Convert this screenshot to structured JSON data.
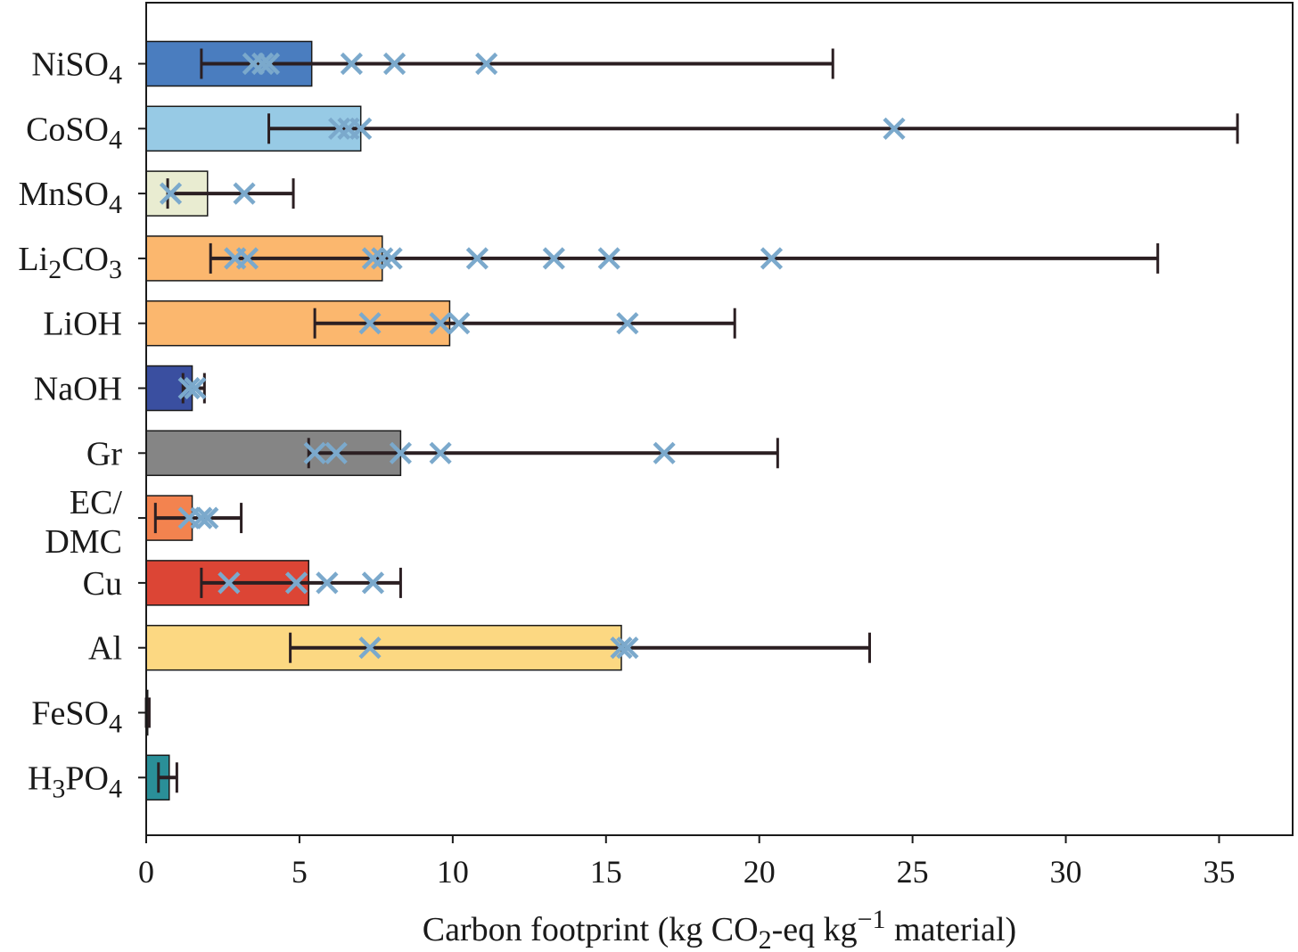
{
  "chart_data": {
    "type": "bar",
    "orientation": "horizontal",
    "xlabel": "Carbon footprint (kg CO₂-eq kg⁻¹ material)",
    "xlabel_parts": [
      "Carbon footprint (kg CO",
      "2",
      "-eq kg",
      "−1",
      " material)"
    ],
    "xlim": [
      0,
      37.4
    ],
    "xticks": [
      0,
      5,
      10,
      15,
      20,
      25,
      30,
      35
    ],
    "xtick_labels": [
      "0",
      "5",
      "10",
      "15",
      "20",
      "25",
      "30",
      "35"
    ],
    "grid": false,
    "legend": "none",
    "marker_color": "#7ba9cc",
    "errorbar_color": "#2b1f22",
    "categories": [
      {
        "label": "NiSO4",
        "parts": [
          [
            "NiSO",
            false
          ],
          [
            "4",
            true
          ]
        ],
        "value": 5.4,
        "err_low": 1.8,
        "err_high": 22.4,
        "points": [
          3.5,
          3.8,
          4.0,
          6.7,
          8.1,
          11.1
        ],
        "color": "#4a7dbf"
      },
      {
        "label": "CoSO4",
        "parts": [
          [
            "CoSO",
            false
          ],
          [
            "4",
            true
          ]
        ],
        "value": 7.0,
        "err_low": 4.0,
        "err_high": 35.6,
        "points": [
          6.3,
          6.6,
          7.0,
          24.4
        ],
        "color": "#97cae5"
      },
      {
        "label": "MnSO4",
        "parts": [
          [
            "MnSO",
            false
          ],
          [
            "4",
            true
          ]
        ],
        "value": 2.0,
        "err_low": 0.7,
        "err_high": 4.8,
        "points": [
          0.8,
          3.2
        ],
        "color": "#e9ecd1"
      },
      {
        "label": "Li2CO3",
        "parts": [
          [
            "Li",
            false
          ],
          [
            "2",
            true
          ],
          [
            "CO",
            false
          ],
          [
            "3",
            true
          ]
        ],
        "value": 7.7,
        "err_low": 2.1,
        "err_high": 33.0,
        "points": [
          2.9,
          3.3,
          7.4,
          7.7,
          8.0,
          10.8,
          13.3,
          15.1,
          20.4
        ],
        "color": "#fbb76e"
      },
      {
        "label": "LiOH",
        "parts": [
          [
            "LiOH",
            false
          ]
        ],
        "value": 9.9,
        "err_low": 5.5,
        "err_high": 19.2,
        "points": [
          7.3,
          9.6,
          10.2,
          15.7
        ],
        "color": "#fbb76e"
      },
      {
        "label": "NaOH",
        "parts": [
          [
            "NaOH",
            false
          ]
        ],
        "value": 1.5,
        "err_low": 1.2,
        "err_high": 1.9,
        "points": [
          1.4,
          1.6
        ],
        "color": "#3a4fa0"
      },
      {
        "label": "Gr",
        "parts": [
          [
            "Gr",
            false
          ]
        ],
        "value": 8.3,
        "err_low": 5.3,
        "err_high": 20.6,
        "points": [
          5.5,
          6.2,
          8.3,
          9.6,
          16.9
        ],
        "color": "#858585"
      },
      {
        "label": "EC/ DMC",
        "lines": [
          "EC/",
          "DMC"
        ],
        "parts": [
          [
            "EC/ DMC",
            false
          ]
        ],
        "value": 1.5,
        "err_low": 0.3,
        "err_high": 3.1,
        "points": [
          1.4,
          1.8,
          2.0
        ],
        "color": "#f3834f"
      },
      {
        "label": "Cu",
        "parts": [
          [
            "Cu",
            false
          ]
        ],
        "value": 5.3,
        "err_low": 1.8,
        "err_high": 8.3,
        "points": [
          2.7,
          4.9,
          5.9,
          7.4
        ],
        "color": "#dc4535"
      },
      {
        "label": "Al",
        "parts": [
          [
            "Al",
            false
          ]
        ],
        "value": 15.5,
        "err_low": 4.7,
        "err_high": 23.6,
        "points": [
          7.3,
          15.5,
          15.7
        ],
        "color": "#fcd882"
      },
      {
        "label": "FeSO4",
        "parts": [
          [
            "FeSO",
            false
          ],
          [
            "4",
            true
          ]
        ],
        "value": 0.05,
        "err_low": 0.0,
        "err_high": 0.1,
        "points": [],
        "color": "#4a7dbf"
      },
      {
        "label": "H3PO4",
        "parts": [
          [
            "H",
            false
          ],
          [
            "3",
            true
          ],
          [
            "PO",
            false
          ],
          [
            "4",
            true
          ]
        ],
        "value": 0.75,
        "err_low": 0.4,
        "err_high": 1.0,
        "points": [],
        "color": "#2a8f98"
      }
    ]
  }
}
